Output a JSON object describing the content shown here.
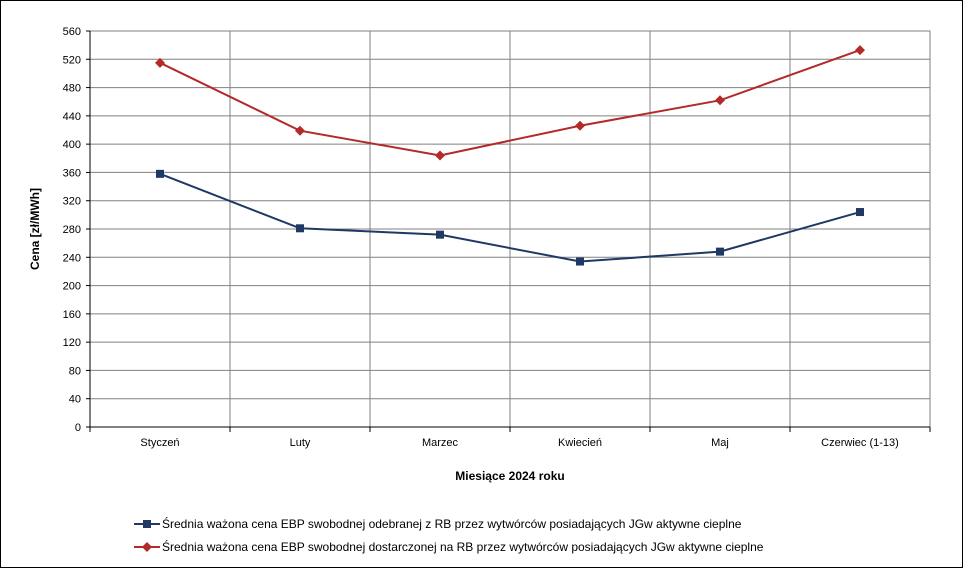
{
  "chart_data": {
    "type": "line",
    "xlabel": "Miesiące 2024  roku",
    "ylabel": "Cena [zł/MWh]",
    "ylim": [
      0,
      560
    ],
    "ytick_step": 40,
    "grid": true,
    "legend_position": "bottom",
    "categories": [
      "Styczeń",
      "Luty",
      "Marzec",
      "Kwiecień",
      "Maj",
      "Czerwiec (1-13)"
    ],
    "series": [
      {
        "name": "Średnia ważona cena EBP swobodnej odebranej z RB przez wytwórców posiadających JGw aktywne cieplne",
        "color": "#1f3864",
        "marker": "square",
        "values": [
          358,
          281,
          272,
          234,
          248,
          304
        ]
      },
      {
        "name": "Średnia ważona cena EBP swobodnej dostarczonej na RB przez wytwórców posiadających JGw aktywne cieplne",
        "color": "#b22a2a",
        "marker": "diamond",
        "values": [
          515,
          419,
          384,
          426,
          462,
          533
        ]
      }
    ]
  }
}
